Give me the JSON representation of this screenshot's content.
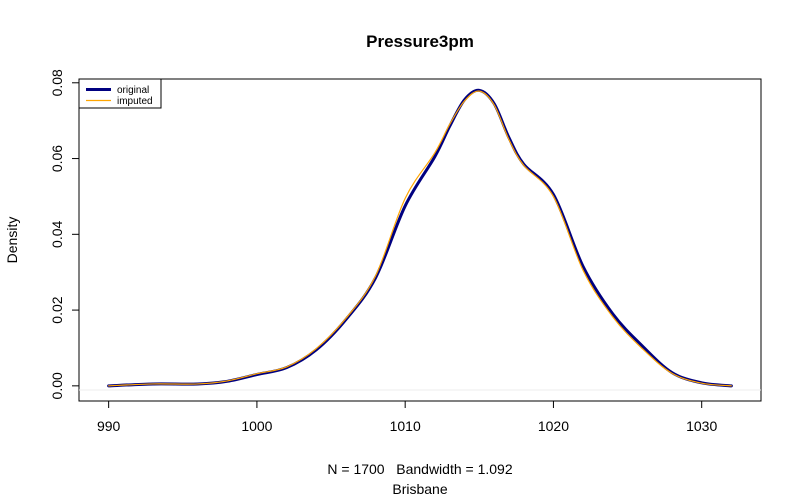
{
  "chart_data": {
    "type": "line",
    "title": "Pressure3pm",
    "xlabel": "N = 1700   Bandwidth = 1.092",
    "sublabel": "Brisbane",
    "ylabel": "Density",
    "xlim": [
      988,
      1034
    ],
    "ylim": [
      -0.004,
      0.081
    ],
    "x_ticks": [
      990,
      1000,
      1010,
      1020,
      1030
    ],
    "y_ticks": [
      0.0,
      0.02,
      0.04,
      0.06,
      0.08
    ],
    "y_tick_labels": [
      "0.00",
      "0.02",
      "0.04",
      "0.06",
      "0.08"
    ],
    "grid": false,
    "legend_position": "top-left",
    "series": [
      {
        "name": "original",
        "color": "#000080",
        "x": [
          990,
          993,
          996,
          998,
          1000,
          1002,
          1004,
          1006,
          1008,
          1010,
          1012,
          1013,
          1014,
          1015,
          1016,
          1017,
          1018,
          1020,
          1022,
          1024,
          1026,
          1028,
          1030,
          1032
        ],
        "y": [
          0.0,
          0.0005,
          0.0005,
          0.0012,
          0.003,
          0.0048,
          0.0095,
          0.0175,
          0.0285,
          0.0475,
          0.0605,
          0.0685,
          0.0755,
          0.078,
          0.0745,
          0.0655,
          0.0585,
          0.0505,
          0.0315,
          0.019,
          0.0105,
          0.0035,
          0.0008,
          0.0
        ]
      },
      {
        "name": "imputed",
        "color": "#FFA500",
        "x": [
          990,
          993,
          996,
          998,
          1000,
          1002,
          1004,
          1006,
          1008,
          1010,
          1012,
          1013,
          1014,
          1015,
          1016,
          1017,
          1018,
          1020,
          1022,
          1024,
          1026,
          1028,
          1030,
          1032
        ],
        "y": [
          0.0,
          0.0005,
          0.0005,
          0.0013,
          0.0032,
          0.005,
          0.0098,
          0.0178,
          0.029,
          0.0495,
          0.0615,
          0.069,
          0.0752,
          0.0778,
          0.0742,
          0.065,
          0.0582,
          0.05,
          0.0305,
          0.0182,
          0.0098,
          0.0033,
          0.0007,
          0.0
        ]
      }
    ]
  }
}
